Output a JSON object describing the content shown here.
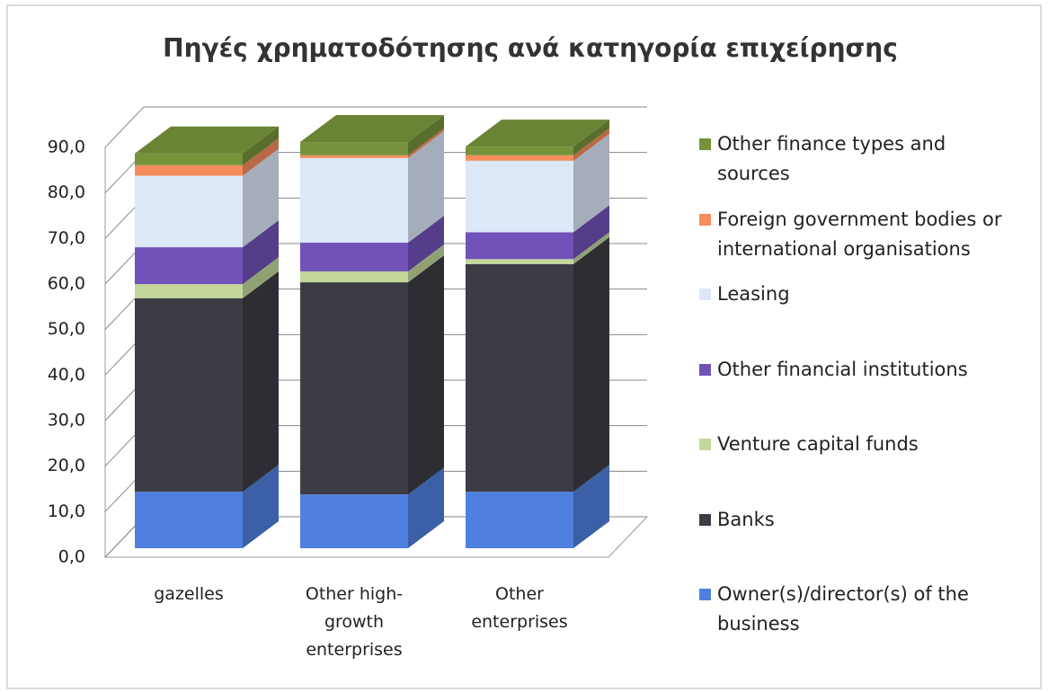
{
  "chart_data": {
    "type": "bar3d_stacked",
    "title": "Πηγές χρηματοδότησης ανά κατηγορία επιχείρησης",
    "categories": [
      "gazelles",
      "Other high-growth enterprises",
      "Other enterprises"
    ],
    "series": [
      {
        "name": "Owner(s)/director(s) of the business",
        "color": "#4f80e0",
        "values": [
          12.4,
          11.8,
          12.4
        ]
      },
      {
        "name": "Banks",
        "color": "#3c3c44",
        "values": [
          42.5,
          46.6,
          50.0
        ]
      },
      {
        "name": "Venture capital funds",
        "color": "#c3d69b",
        "values": [
          3.1,
          2.4,
          1.1
        ]
      },
      {
        "name": "Other financial institutions",
        "color": "#7052b8",
        "values": [
          8.1,
          6.3,
          5.9
        ]
      },
      {
        "name": "Leasing",
        "color": "#dce7f8",
        "values": [
          15.7,
          18.6,
          15.7
        ]
      },
      {
        "name": "Foreign government bodies or international organisations",
        "color": "#f78c5c",
        "values": [
          2.3,
          0.6,
          1.2
        ]
      },
      {
        "name": "Other finance types and sources",
        "color": "#76933c",
        "values": [
          2.6,
          2.9,
          1.9
        ]
      }
    ],
    "ylim": [
      0,
      90
    ],
    "yticks": [
      {
        "value": 0,
        "label": "0,0"
      },
      {
        "value": 10,
        "label": "10,0"
      },
      {
        "value": 20,
        "label": "20,0"
      },
      {
        "value": 30,
        "label": "30,0"
      },
      {
        "value": 40,
        "label": "40,0"
      },
      {
        "value": 50,
        "label": "50,0"
      },
      {
        "value": 60,
        "label": "60,0"
      },
      {
        "value": 70,
        "label": "70,0"
      },
      {
        "value": 80,
        "label": "80,0"
      },
      {
        "value": 90,
        "label": "90,0"
      }
    ],
    "grid": true,
    "legend": "right"
  }
}
